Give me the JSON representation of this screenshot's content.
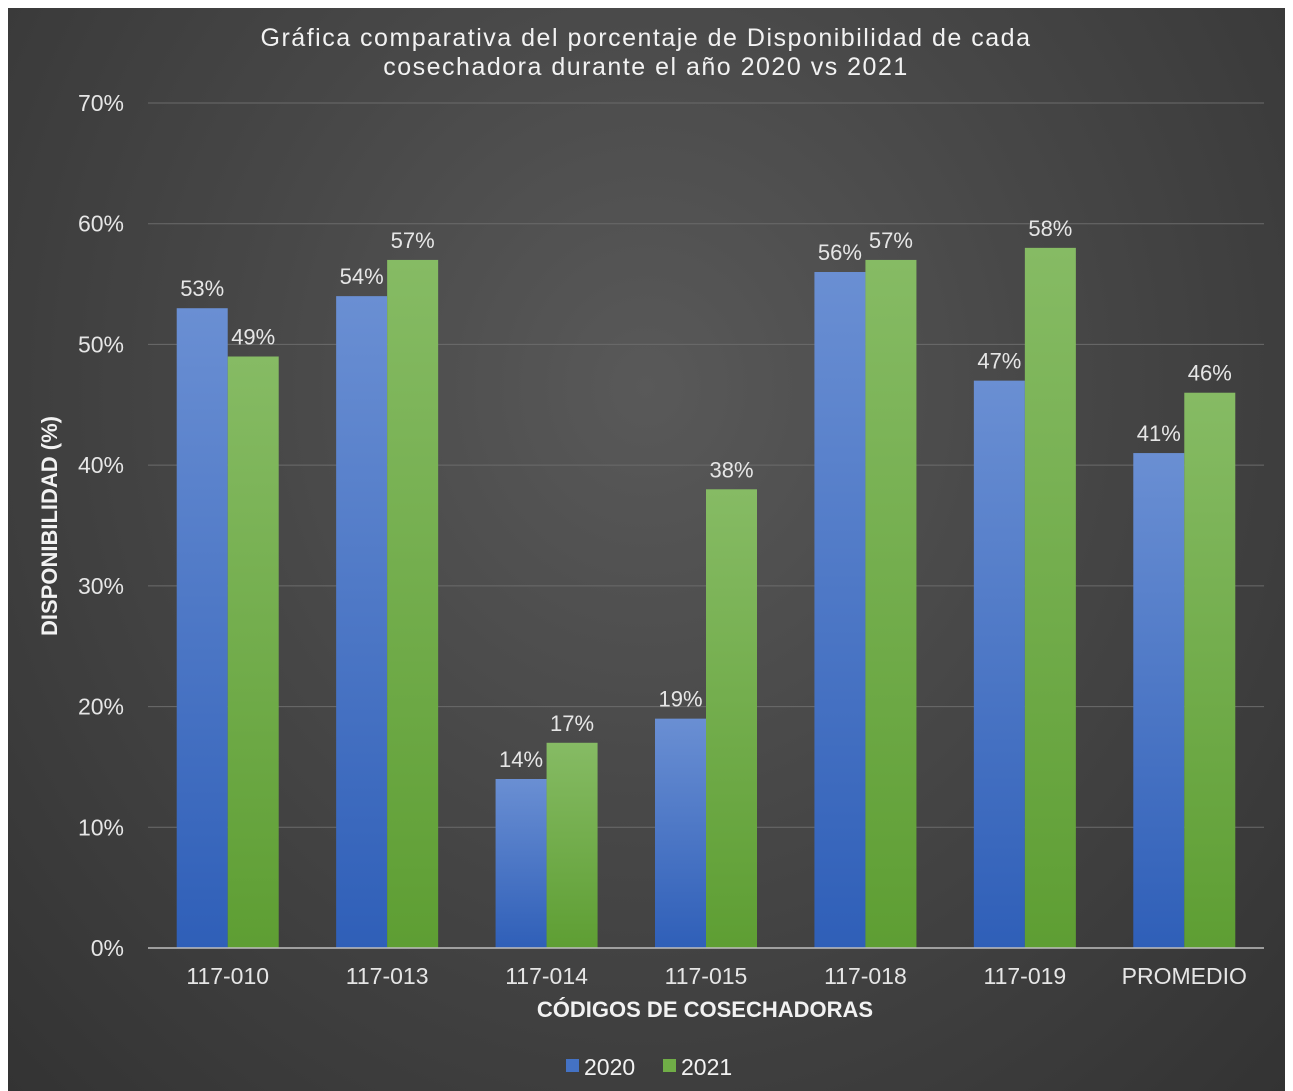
{
  "chart_data": {
    "type": "bar",
    "title_lines": [
      "Gráfica comparativa del porcentaje de Disponibilidad de cada",
      "cosechadora durante el año 2020 vs 2021"
    ],
    "xlabel": "CÓDIGOS DE COSECHADORAS",
    "ylabel": "DISPONIBILIDAD (%)",
    "ylim": [
      0,
      70
    ],
    "yticks": [
      "0%",
      "10%",
      "20%",
      "30%",
      "40%",
      "50%",
      "60%",
      "70%"
    ],
    "categories": [
      "117-010",
      "117-013",
      "117-014",
      "117-015",
      "117-018",
      "117-019",
      "PROMEDIO"
    ],
    "series": [
      {
        "name": "2020",
        "color": "#4472c4",
        "values": [
          53,
          54,
          14,
          19,
          56,
          47,
          41
        ],
        "labels": [
          "53%",
          "54%",
          "14%",
          "19%",
          "56%",
          "47%",
          "41%"
        ]
      },
      {
        "name": "2021",
        "color": "#70ad47",
        "values": [
          49,
          57,
          17,
          38,
          57,
          58,
          46
        ],
        "labels": [
          "49%",
          "57%",
          "17%",
          "38%",
          "57%",
          "58%",
          "46%"
        ]
      }
    ],
    "grid": true,
    "legend_position": "bottom"
  }
}
